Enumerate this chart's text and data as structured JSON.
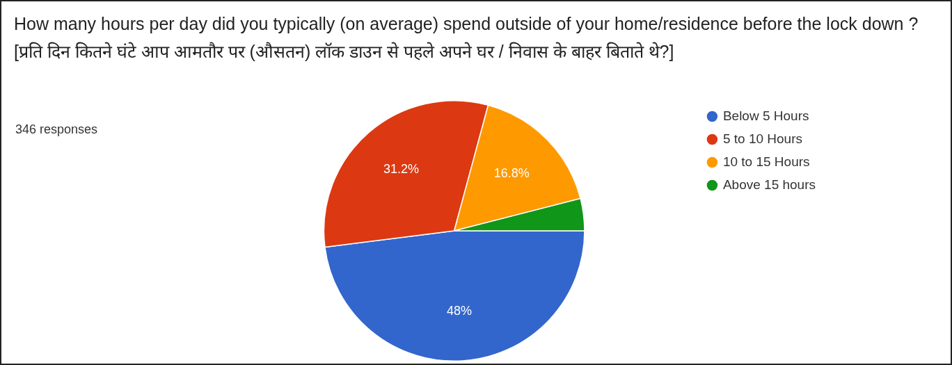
{
  "chart_data": {
    "type": "pie",
    "title": "How many hours per day did you typically (on average) spend outside of your home/residence before the lock down ? [प्रति दिन कितने घंटे आप आमतौर पर (औसतन) लॉक डाउन से पहले अपने घर / निवास के बाहर बिताते थे?]",
    "subtitle": "346 responses",
    "categories": [
      "Below 5 Hours",
      "5 to 10 Hours",
      "10 to 15 Hours",
      "Above 15 hours"
    ],
    "values": [
      48,
      31.2,
      16.8,
      4.0
    ],
    "colors": [
      "#3366cc",
      "#dc3912",
      "#ff9900",
      "#109618"
    ],
    "value_labels": [
      "48%",
      "31.2%",
      "16.8%",
      null
    ],
    "legend": "right"
  }
}
